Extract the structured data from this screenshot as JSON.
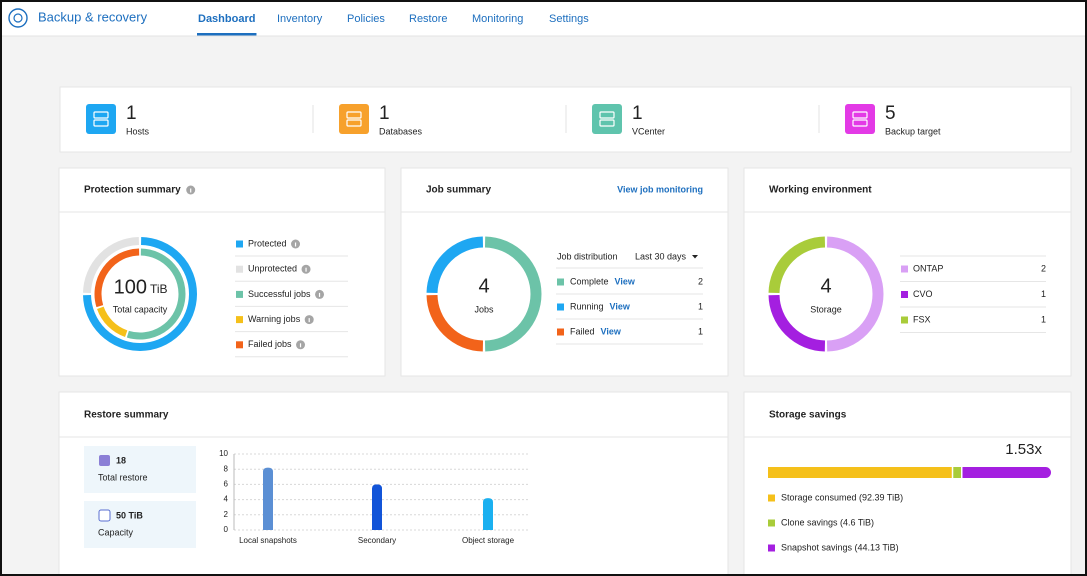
{
  "header": {
    "title": "Backup & recovery",
    "tabs": [
      "Dashboard",
      "Inventory",
      "Policies",
      "Restore",
      "Monitoring",
      "Settings"
    ],
    "active_tab": 0
  },
  "stats": [
    {
      "value": 1,
      "label": "Hosts",
      "color": "#1ea7f2"
    },
    {
      "value": 1,
      "label": "Databases",
      "color": "#f7a12c"
    },
    {
      "value": 1,
      "label": "VCenter",
      "color": "#5fc4ad"
    },
    {
      "value": 5,
      "label": "Backup target",
      "color": "#e33ae6"
    }
  ],
  "protection_summary": {
    "title": "Protection summary",
    "total": 100,
    "unit": "TiB",
    "total_label": "Total capacity",
    "outer": [
      {
        "name": "Protected",
        "value": 75,
        "color": "#1ea7f2"
      },
      {
        "name": "Unprotected",
        "value": 25,
        "color": "#e2e2e2"
      }
    ],
    "inner": [
      {
        "name": "Successful jobs",
        "value": 55,
        "color": "#6cc3a8"
      },
      {
        "name": "Warning jobs",
        "value": 15,
        "color": "#f5c01a"
      },
      {
        "name": "Failed jobs",
        "value": 30,
        "color": "#f2631a"
      }
    ]
  },
  "job_summary": {
    "title": "Job summary",
    "link": "View job monitoring",
    "center_value": 4,
    "center_label": "Jobs",
    "distribution_label": "Job distribution",
    "period": "Last 30 days",
    "action": "View",
    "items": [
      {
        "name": "Complete",
        "value": 2,
        "color": "#6cc3a8"
      },
      {
        "name": "Running",
        "value": 1,
        "color": "#1ea7f2"
      },
      {
        "name": "Failed",
        "value": 1,
        "color": "#f2631a"
      }
    ]
  },
  "working_environment": {
    "title": "Working environment",
    "center_value": 4,
    "center_label": "Storage",
    "items": [
      {
        "name": "ONTAP",
        "value": 2,
        "color": "#d9a0f5"
      },
      {
        "name": "CVO",
        "value": 1,
        "color": "#a41fe0"
      },
      {
        "name": "FSX",
        "value": 1,
        "color": "#a9cc3a"
      }
    ]
  },
  "restore_summary": {
    "title": "Restore summary",
    "stats": [
      {
        "value": 18,
        "label": "Total restore"
      },
      {
        "value": "50 TiB",
        "label": "Capacity"
      }
    ],
    "chart": {
      "type": "bar",
      "categories": [
        "Local snapshots",
        "Secondary",
        "Object storage"
      ],
      "values": [
        8.2,
        6,
        4.2
      ],
      "colors": [
        "#5b8fd4",
        "#1254d8",
        "#1ab0f0"
      ],
      "ylim": [
        0,
        10
      ],
      "yticks": [
        0,
        2,
        4,
        6,
        8,
        10
      ],
      "grid": true
    }
  },
  "storage_savings": {
    "title": "Storage savings",
    "ratio": "1.53x",
    "segments": [
      {
        "label": "Storage consumed (92.39 TiB)",
        "value": 92.39,
        "color": "#f5c01a"
      },
      {
        "label": "Clone savings (4.6 TiB)",
        "value": 4.6,
        "color": "#a9cc3a"
      },
      {
        "label": "Snapshot savings (44.13 TiB)",
        "value": 44.13,
        "color": "#a41fe0"
      }
    ]
  }
}
